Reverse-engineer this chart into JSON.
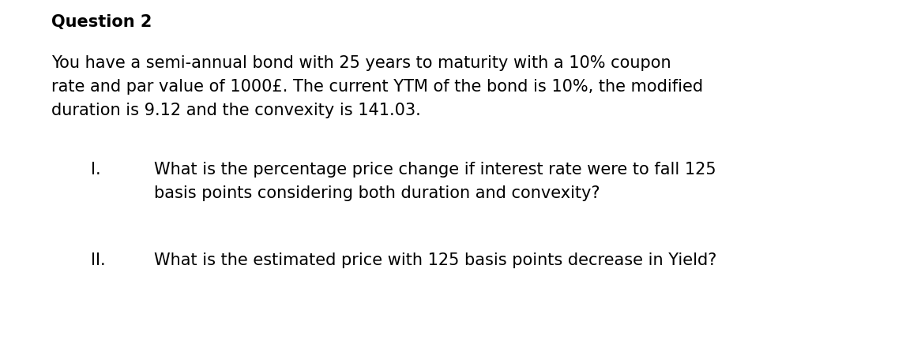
{
  "background_color": "#ffffff",
  "title": "Question 2",
  "title_fontsize": 15,
  "body_text_line1": "You have a semi-annual bond with 25 years to maturity with a 10% coupon",
  "body_text_line2": "rate and par value of 1000£. The current YTM of the bond is 10%, the modified",
  "body_text_line3": "duration is 9.12 and the convexity is 141.03.",
  "body_fontsize": 15,
  "item_i_label": "I.",
  "item_i_text_line1": "What is the percentage price change if interest rate were to fall 125",
  "item_i_text_line2": "basis points considering both duration and convexity?",
  "item_ii_label": "II.",
  "item_ii_text": "What is the estimated price with 125 basis points decrease in Yield?",
  "item_fontsize": 15,
  "font_family": "Arial Narrow",
  "font_stretch": "condensed"
}
